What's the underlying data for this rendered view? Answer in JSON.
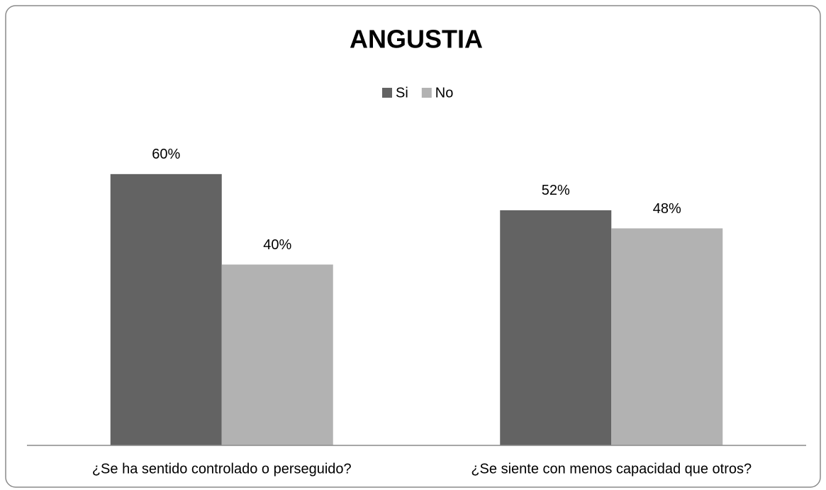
{
  "chart_data": {
    "type": "bar",
    "title": "ANGUSTIA",
    "categories": [
      "¿Se ha sentido controlado o perseguido?",
      "¿Se siente con menos capacidad que otros?"
    ],
    "series": [
      {
        "name": "Si",
        "color": "#636363",
        "values": [
          60,
          52
        ],
        "value_labels": [
          "60%",
          "52%"
        ]
      },
      {
        "name": "No",
        "color": "#b2b2b2",
        "values": [
          40,
          48
        ],
        "value_labels": [
          "40%",
          "48%"
        ]
      }
    ],
    "ylim": [
      0,
      70
    ],
    "legend": "top"
  }
}
